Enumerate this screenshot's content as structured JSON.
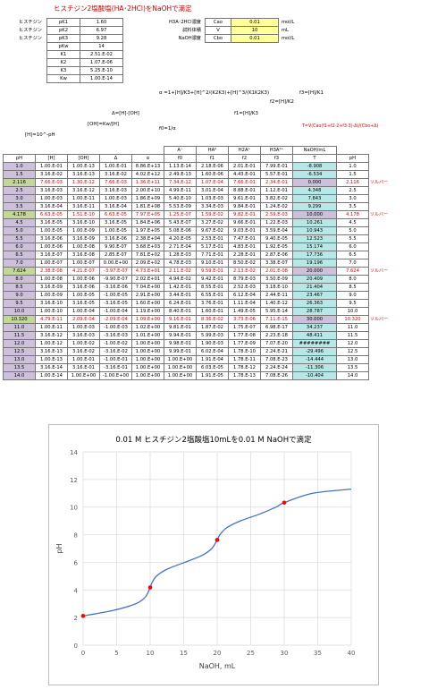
{
  "title": "ヒスチジン2塩酸塩(HA･2HCl)をNaOHで滴定",
  "constants": [
    {
      "label": "ヒスチジン",
      "key": "pK1",
      "value": "1.60",
      "style": "yel"
    },
    {
      "label": "ヒスチジン",
      "key": "pK2",
      "value": "6.97",
      "style": "yel"
    },
    {
      "label": "ヒスチジン",
      "key": "pK3",
      "value": "9.28",
      "style": "yel"
    },
    {
      "label": "",
      "key": "pKw",
      "value": "14",
      "style": "yel"
    },
    {
      "label": "",
      "key": "K1",
      "value": "2.51.E-02",
      "style": ""
    },
    {
      "label": "",
      "key": "K2",
      "value": "1.07.E-06",
      "style": ""
    },
    {
      "label": "",
      "key": "K3",
      "value": "5.25.E-10",
      "style": ""
    },
    {
      "label": "",
      "key": "Kw",
      "value": "1.00.E-14",
      "style": ""
    }
  ],
  "params": [
    {
      "label": "H3A･2HCl濃度",
      "sym": "Cao",
      "value": "0.01",
      "unit": "mol/L"
    },
    {
      "label": "試料体積",
      "sym": "V",
      "value": "10",
      "unit": "mL"
    },
    {
      "label": "NaOH濃度",
      "sym": "Cbo",
      "value": "0.01",
      "unit": "mol/L"
    }
  ],
  "formulas": {
    "alpha": "α =1+[H]/K3+[H]^2/(K2K3)+[H]^3/(K1K2K3)",
    "f3": "f3=[H]/K1",
    "f2": "f2=[H]/K2",
    "f1": "f1=[H]/K3",
    "delta": "Δ=[H]-[OH]",
    "oh": "[OH]=Kw/[H]",
    "h": "[H]=10^-pH",
    "f0": "f0=1/α",
    "t": "T=V(Cao(f1+f2·2+f3·3)-Δ)/(Cbo+Δ)"
  },
  "headers": {
    "top": [
      "",
      "",
      "",
      "",
      "",
      "A⁻",
      "HA⁰",
      "H2A⁺",
      "H3A²⁺",
      "NaOH/mL",
      ""
    ],
    "bottom": [
      "pH",
      "[H]",
      "[OH]",
      "Δ",
      "α",
      "f0",
      "f1",
      "f2",
      "f3",
      "T",
      "pH"
    ]
  },
  "side_label": "ソルバー",
  "rows": [
    {
      "style": "pur",
      "side": false,
      "cells": [
        "1.0",
        "1.00.E-01",
        "1.00.E-13",
        "1.00.E-01",
        "8.86.E+13",
        "1.13.E-14",
        "2.18.E-06",
        "2.01.E-01",
        "7.99.E-01",
        "-8.908",
        "1.0"
      ]
    },
    {
      "style": "pur",
      "side": false,
      "cells": [
        "1.5",
        "3.16.E-02",
        "3.16.E-13",
        "3.16.E-02",
        "4.02.E+12",
        "2.49.E-13",
        "1.60.E-06",
        "4.43.E-01",
        "5.57.E-01",
        "-6.534",
        "1.5"
      ]
    },
    {
      "style": "grn",
      "side": true,
      "cells": [
        "2.116",
        "7.66.E-03",
        "1.30.E-12",
        "7.66.E-03",
        "1.36.E+11",
        "7.34.E-12",
        "1.07.E-04",
        "7.66.E-01",
        "2.34.E-01",
        "0.000",
        "2.116"
      ]
    },
    {
      "style": "pur",
      "side": false,
      "cells": [
        "2.5",
        "3.16.E-03",
        "3.16.E-12",
        "3.16.E-03",
        "2.00.E+10",
        "4.99.E-11",
        "3.01.E-04",
        "8.88.E-01",
        "1.12.E-01",
        "4.348",
        "2.5"
      ]
    },
    {
      "style": "pur",
      "side": false,
      "cells": [
        "3.0",
        "1.00.E-03",
        "1.00.E-11",
        "1.00.E-03",
        "1.86.E+09",
        "5.40.E-10",
        "1.03.E-03",
        "9.61.E-01",
        "3.82.E-02",
        "7.843",
        "3.0"
      ]
    },
    {
      "style": "pur",
      "side": false,
      "cells": [
        "3.5",
        "3.16.E-04",
        "3.16.E-11",
        "3.16.E-04",
        "1.81.E+08",
        "5.53.E-09",
        "3.34.E-03",
        "9.84.E-01",
        "1.24.E-02",
        "9.299",
        "3.5"
      ]
    },
    {
      "style": "grn",
      "side": true,
      "cells": [
        "4.178",
        "6.63.E-05",
        "1.51.E-10",
        "6.63.E-05",
        "7.97.E+05",
        "1.25.E-07",
        "1.59.E-02",
        "9.82.E-01",
        "2.59.E-03",
        "10.000",
        "4.178"
      ]
    },
    {
      "style": "pur",
      "side": false,
      "cells": [
        "4.5",
        "3.16.E-05",
        "3.16.E-10",
        "3.16.E-05",
        "1.84.E+06",
        "5.43.E-07",
        "3.27.E-02",
        "9.66.E-01",
        "1.22.E-03",
        "10.261",
        "4.5"
      ]
    },
    {
      "style": "pur",
      "side": false,
      "cells": [
        "5.0",
        "1.00.E-05",
        "1.00.E-09",
        "1.00.E-05",
        "1.97.E+05",
        "5.08.E-06",
        "9.67.E-02",
        "9.03.E-01",
        "3.59.E-04",
        "10.943",
        "5.0"
      ]
    },
    {
      "style": "pur",
      "side": false,
      "cells": [
        "5.5",
        "3.16.E-06",
        "3.16.E-09",
        "3.16.E-06",
        "2.38.E+04",
        "4.20.E-05",
        "2.53.E-01",
        "7.47.E-01",
        "9.40.E-05",
        "12.523",
        "5.5"
      ]
    },
    {
      "style": "pur",
      "side": false,
      "cells": [
        "6.0",
        "1.00.E-06",
        "1.00.E-08",
        "9.90.E-07",
        "3.68.E+03",
        "2.71.E-04",
        "5.17.E-01",
        "4.83.E-01",
        "1.92.E-05",
        "15.174",
        "6.0"
      ]
    },
    {
      "style": "pur",
      "side": false,
      "cells": [
        "6.5",
        "3.16.E-07",
        "3.16.E-08",
        "2.85.E-07",
        "7.81.E+02",
        "1.28.E-03",
        "7.71.E-01",
        "2.28.E-01",
        "2.87.E-06",
        "17.736",
        "6.5"
      ]
    },
    {
      "style": "pur",
      "side": false,
      "cells": [
        "7.0",
        "1.00.E-07",
        "1.00.E-07",
        "0.00.E+00",
        "2.09.E+02",
        "4.78.E-03",
        "9.10.E-01",
        "8.50.E-02",
        "3.38.E-07",
        "19.196",
        "7.0"
      ]
    },
    {
      "style": "grn",
      "side": true,
      "cells": [
        "7.624",
        "2.38.E-08",
        "4.21.E-07",
        "-3.97.E-07",
        "4.73.E+01",
        "2.11.E-02",
        "9.59.E-01",
        "2.13.E-02",
        "2.01.E-08",
        "20.000",
        "7.624"
      ]
    },
    {
      "style": "pur",
      "side": false,
      "cells": [
        "8.0",
        "1.00.E-08",
        "1.00.E-06",
        "-9.90.E-07",
        "2.02.E+01",
        "4.94.E-02",
        "9.42.E-01",
        "8.79.E-03",
        "3.50.E-09",
        "20.409",
        "8.0"
      ]
    },
    {
      "style": "pur",
      "side": false,
      "cells": [
        "8.5",
        "3.16.E-09",
        "3.16.E-06",
        "-3.16.E-06",
        "7.04.E+00",
        "1.42.E-01",
        "8.55.E-01",
        "2.52.E-03",
        "3.18.E-10",
        "21.404",
        "8.5"
      ]
    },
    {
      "style": "pur",
      "side": false,
      "cells": [
        "9.0",
        "1.00.E-09",
        "1.00.E-05",
        "-1.00.E-05",
        "2.91.E+00",
        "3.44.E-01",
        "6.55.E-01",
        "6.12.E-04",
        "2.44.E-11",
        "23.467",
        "9.0"
      ]
    },
    {
      "style": "pur",
      "side": false,
      "cells": [
        "9.5",
        "3.16.E-10",
        "3.16.E-05",
        "-3.16.E-05",
        "1.60.E+00",
        "6.24.E-01",
        "3.76.E-01",
        "1.11.E-04",
        "1.40.E-12",
        "26.363",
        "9.5"
      ]
    },
    {
      "style": "pur",
      "side": false,
      "cells": [
        "10.0",
        "1.00.E-10",
        "1.00.E-04",
        "-1.00.E-04",
        "1.19.E+00",
        "8.40.E-01",
        "1.60.E-01",
        "1.49.E-05",
        "5.95.E-14",
        "28.787",
        "10.0"
      ]
    },
    {
      "style": "grn",
      "side": true,
      "cells": [
        "10.320",
        "4.79.E-11",
        "2.09.E-04",
        "-2.09.E-04",
        "1.09.E+00",
        "9.16.E-01",
        "8.36.E-02",
        "3.73.E-06",
        "7.11.E-15",
        "30.000",
        "10.320"
      ]
    },
    {
      "style": "pur",
      "side": false,
      "cells": [
        "11.0",
        "1.00.E-11",
        "1.00.E-03",
        "-1.00.E-03",
        "1.02.E+00",
        "9.81.E-01",
        "1.87.E-02",
        "1.75.E-07",
        "6.98.E-17",
        "34.237",
        "11.0"
      ]
    },
    {
      "style": "pur",
      "side": false,
      "cells": [
        "11.5",
        "3.16.E-12",
        "3.16.E-03",
        "-3.16.E-03",
        "1.01.E+00",
        "9.94.E-01",
        "5.99.E-03",
        "1.77.E-08",
        "2.23.E-18",
        "48.411",
        "11.5"
      ]
    },
    {
      "style": "pur",
      "side": false,
      "cells": [
        "12.0",
        "1.00.E-12",
        "1.00.E-02",
        "-1.00.E-02",
        "1.00.E+00",
        "9.98.E-01",
        "1.90.E-03",
        "1.77.E-09",
        "7.07.E-20",
        "########",
        "12.0"
      ]
    },
    {
      "style": "pur",
      "side": false,
      "cells": [
        "12.5",
        "3.16.E-13",
        "3.16.E-02",
        "-3.16.E-02",
        "1.00.E+00",
        "9.99.E-01",
        "6.02.E-04",
        "1.78.E-10",
        "2.24.E-21",
        "-29.496",
        "12.5"
      ]
    },
    {
      "style": "pur",
      "side": false,
      "cells": [
        "13.0",
        "1.00.E-13",
        "1.00.E-01",
        "-1.00.E-01",
        "1.00.E+00",
        "1.00.E+00",
        "1.91.E-04",
        "1.78.E-11",
        "7.08.E-23",
        "-14.444",
        "13.0"
      ]
    },
    {
      "style": "pur",
      "side": false,
      "cells": [
        "13.5",
        "3.16.E-14",
        "3.16.E-01",
        "-3.16.E-01",
        "1.00.E+00",
        "1.00.E+00",
        "6.03.E-05",
        "1.78.E-12",
        "2.24.E-24",
        "-11.306",
        "13.5"
      ]
    },
    {
      "style": "pur",
      "side": false,
      "cells": [
        "14.0",
        "1.00.E-14",
        "1.00.E+00",
        "-1.00.E+00",
        "1.00.E+00",
        "1.00.E+00",
        "1.91.E-05",
        "1.78.E-13",
        "7.08.E-26",
        "-10.404",
        "14.0"
      ]
    }
  ],
  "chart_data": {
    "type": "scatter",
    "title": "0.01 M ヒスチジン2塩酸塩10mLを0.01 M NaOHで滴定",
    "xlabel": "NaOH, mL",
    "ylabel": "pH",
    "xlim": [
      0,
      40
    ],
    "ylim": [
      0,
      14
    ],
    "xticks": [
      0,
      5,
      10,
      15,
      20,
      25,
      30,
      35,
      40
    ],
    "yticks": [
      0,
      2,
      4,
      6,
      8,
      10,
      12,
      14
    ],
    "line_color": "#4472c4",
    "marker_color": "#ff0000",
    "curve": [
      [
        0.0,
        2.116
      ],
      [
        4.348,
        2.5
      ],
      [
        7.843,
        3.0
      ],
      [
        9.299,
        3.5
      ],
      [
        10.0,
        4.178
      ],
      [
        10.261,
        4.5
      ],
      [
        10.943,
        5.0
      ],
      [
        12.523,
        5.5
      ],
      [
        15.174,
        6.0
      ],
      [
        17.736,
        6.5
      ],
      [
        19.196,
        7.0
      ],
      [
        20.0,
        7.624
      ],
      [
        20.409,
        8.0
      ],
      [
        21.404,
        8.5
      ],
      [
        23.467,
        9.0
      ],
      [
        26.363,
        9.5
      ],
      [
        28.787,
        10.0
      ],
      [
        30.0,
        10.32
      ],
      [
        34.237,
        11.0
      ],
      [
        40.0,
        11.3
      ]
    ],
    "markers": [
      [
        0.0,
        2.116
      ],
      [
        10.0,
        4.178
      ],
      [
        20.0,
        7.624
      ],
      [
        30.0,
        10.32
      ]
    ]
  }
}
